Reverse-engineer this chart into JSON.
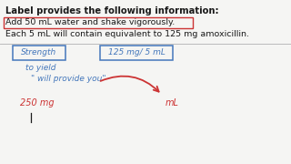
{
  "bg_color": "#f5f5f3",
  "title_text": "Label provides the following information:",
  "line1": "Add 50 mL water and shake vigorously.",
  "line2": "Each 5 mL will contain equivalent to 125 mg amoxicillin.",
  "hw_strength": "Strength",
  "hw_toyield": "to yield",
  "hw_willprovide": "\" will provide you\"",
  "hw_dose": "250 mg",
  "hw_ml": "mL",
  "hw_fraction": "125 mg/ 5 mL",
  "box_color": "#4477bb",
  "red_color": "#cc3333",
  "blue_color": "#4477bb",
  "text_color": "#1a1a1a",
  "sep_color": "#bbbbbb",
  "rect1_color": "#cc3333",
  "title_fontsize": 7.2,
  "body_fontsize": 6.8,
  "hw_fontsize": 6.5
}
